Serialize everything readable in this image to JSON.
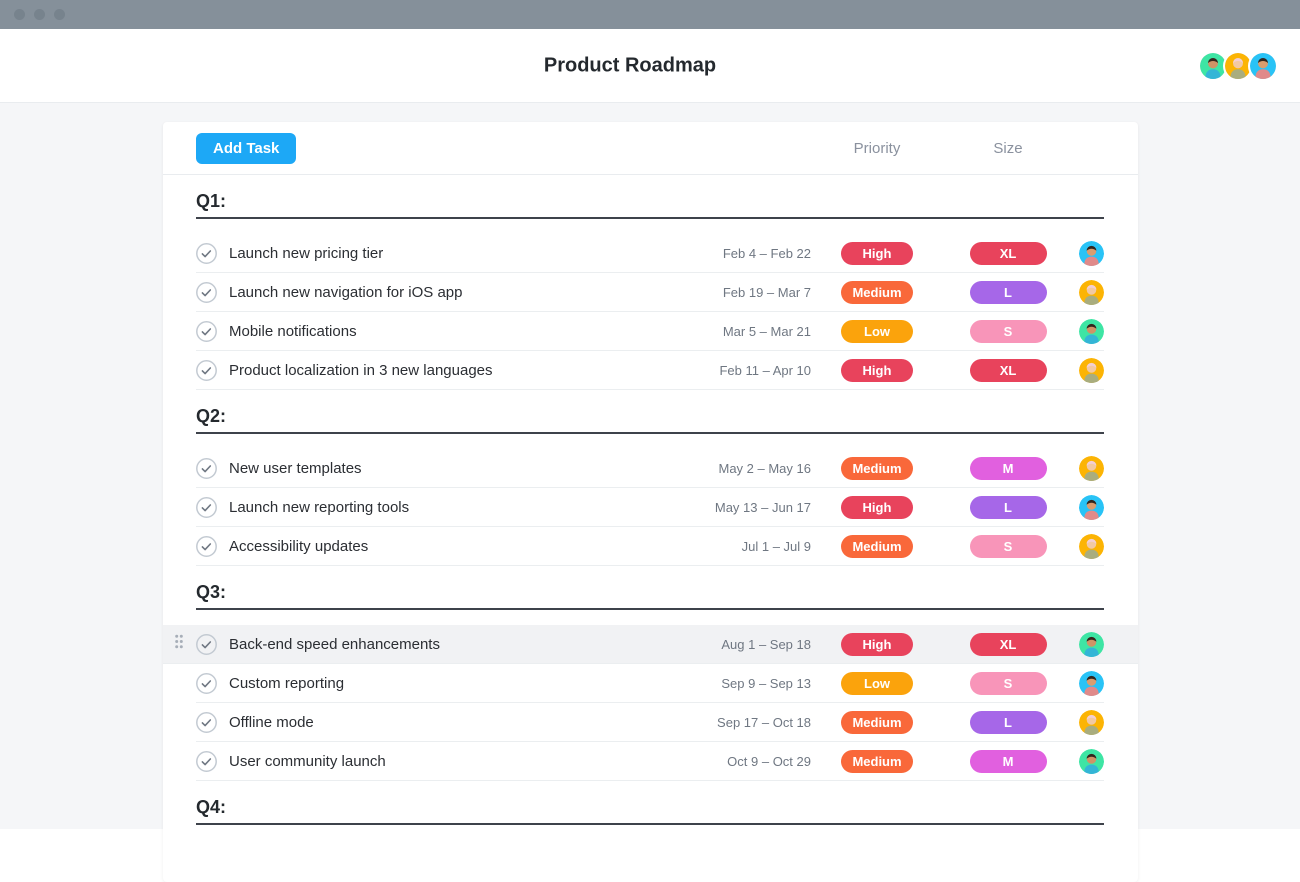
{
  "window": {
    "topbar_color": "#85909a",
    "traffic_lights": [
      "close",
      "minimize",
      "maximize"
    ]
  },
  "header": {
    "title": "Product Roadmap",
    "avatars": [
      "green",
      "yellow",
      "cyan"
    ]
  },
  "toolbar": {
    "add_task": "Add Task",
    "priority_header": "Priority",
    "size_header": "Size"
  },
  "sections": [
    {
      "label": "Q1:",
      "tasks": [
        {
          "name": "Launch new pricing tier",
          "dates": "Feb 4 – Feb 22",
          "priority": "High",
          "size": "XL",
          "avatar": "cyan",
          "highlighted": false
        },
        {
          "name": "Launch new navigation for iOS app",
          "dates": "Feb 19 – Mar 7",
          "priority": "Medium",
          "size": "L",
          "avatar": "yellow",
          "highlighted": false
        },
        {
          "name": "Mobile notifications",
          "dates": "Mar 5 – Mar 21",
          "priority": "Low",
          "size": "S",
          "avatar": "green",
          "highlighted": false
        },
        {
          "name": "Product localization in 3 new languages",
          "dates": "Feb 11 – Apr 10",
          "priority": "High",
          "size": "XL",
          "avatar": "yellow",
          "highlighted": false
        }
      ]
    },
    {
      "label": "Q2:",
      "tasks": [
        {
          "name": "New user templates",
          "dates": "May 2 – May 16",
          "priority": "Medium",
          "size": "M",
          "avatar": "yellow",
          "highlighted": false
        },
        {
          "name": "Launch new reporting tools",
          "dates": "May 13 – Jun 17",
          "priority": "High",
          "size": "L",
          "avatar": "cyan",
          "highlighted": false
        },
        {
          "name": "Accessibility updates",
          "dates": "Jul 1 – Jul 9",
          "priority": "Medium",
          "size": "S",
          "avatar": "yellow",
          "highlighted": false
        }
      ]
    },
    {
      "label": "Q3:",
      "tasks": [
        {
          "name": "Back-end speed enhancements",
          "dates": "Aug 1 – Sep 18",
          "priority": "High",
          "size": "XL",
          "avatar": "green",
          "highlighted": true
        },
        {
          "name": "Custom reporting",
          "dates": "Sep 9 – Sep 13",
          "priority": "Low",
          "size": "S",
          "avatar": "cyan",
          "highlighted": false
        },
        {
          "name": "Offline mode",
          "dates": "Sep 17 – Oct 18",
          "priority": "Medium",
          "size": "L",
          "avatar": "yellow",
          "highlighted": false
        },
        {
          "name": "User community launch",
          "dates": "Oct 9 – Oct 29",
          "priority": "Medium",
          "size": "M",
          "avatar": "green",
          "highlighted": false
        }
      ]
    },
    {
      "label": "Q4:",
      "tasks": []
    }
  ],
  "colors": {
    "accent_blue": "#1da8f6",
    "priority": {
      "High": "#e8435c",
      "Medium": "#f9683a",
      "Low": "#fba30c"
    },
    "size": {
      "XL": "#e8435c",
      "L": "#a667e8",
      "S": "#f895b9",
      "M": "#e160df"
    },
    "avatar_palettes": {
      "cyan": {
        "bg": "#29c3f6",
        "skin": "#d99d6f",
        "hair": "#30261f",
        "shirt": "#e08a8a"
      },
      "yellow": {
        "bg": "#fcb404",
        "skin": "#f2c9a4",
        "hair": "#f3cfd4",
        "shirt": "#a9ad7e"
      },
      "green": {
        "bg": "#3ee5a4",
        "skin": "#cf9366",
        "hair": "#33261d",
        "shirt": "#33b5d6"
      }
    }
  }
}
